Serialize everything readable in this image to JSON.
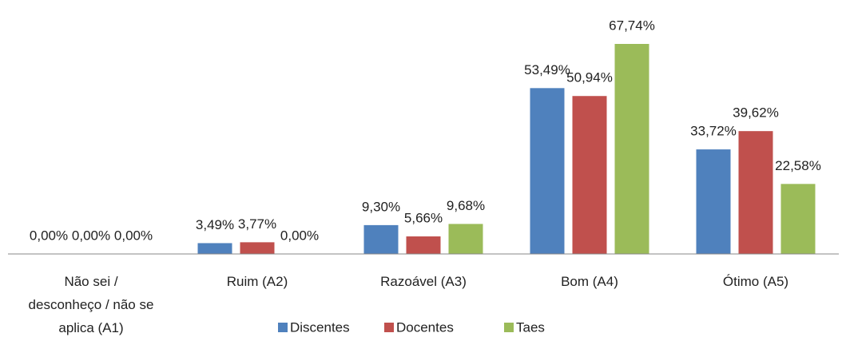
{
  "chart_data": {
    "type": "bar",
    "categories": [
      "Não sei / desconheço / não se aplica (A1)",
      "Ruim (A2)",
      "Razoável (A3)",
      "Bom (A4)",
      "Ótimo (A5)"
    ],
    "series": [
      {
        "name": "Discentes",
        "color": "#4f81bd",
        "values": [
          0,
          3.49,
          9.3,
          53.49,
          33.72
        ],
        "value_labels": [
          "0,00%",
          "3,49%",
          "9,30%",
          "53,49%",
          "33,72%"
        ]
      },
      {
        "name": "Docentes",
        "color": "#c0504d",
        "values": [
          0,
          3.77,
          5.66,
          50.94,
          39.62
        ],
        "value_labels": [
          "0,00%",
          "3,77%",
          "5,66%",
          "50,94%",
          "39,62%"
        ]
      },
      {
        "name": "Taes",
        "color": "#9bbb59",
        "values": [
          0,
          0,
          9.68,
          67.74,
          22.58
        ],
        "value_labels": [
          "0,00%",
          "0,00%",
          "9,68%",
          "67,74%",
          "22,58%"
        ]
      }
    ],
    "legend": "bottom"
  }
}
